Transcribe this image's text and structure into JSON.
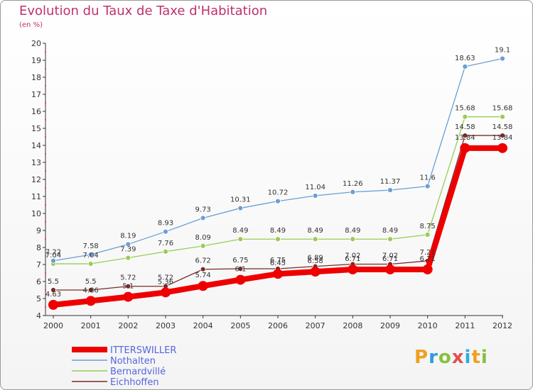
{
  "header": {
    "title": "Evolution du Taux de Taxe d'Habitation",
    "unit": "(en %)"
  },
  "logo": {
    "text": "Proxiti",
    "letters": [
      "P",
      "r",
      "o",
      "x",
      "i",
      "t",
      "i"
    ],
    "colors": [
      "#f0a020",
      "#3399dd",
      "#88c040",
      "#e05050",
      "#33aadd",
      "#f0a020",
      "#88c040"
    ]
  },
  "chart_data": {
    "type": "line",
    "x": [
      "2000",
      "2001",
      "2002",
      "2003",
      "2004",
      "2005",
      "2006",
      "2007",
      "2008",
      "2009",
      "2010",
      "2011",
      "2012"
    ],
    "ylim": [
      4,
      20
    ],
    "yticks": [
      "4",
      "5",
      "6",
      "7",
      "8",
      "9",
      "10",
      "11",
      "12",
      "13",
      "14",
      "15",
      "16",
      "17",
      "18",
      "19",
      "20"
    ],
    "grid": false,
    "legend_position": "bottom-left",
    "series": [
      {
        "name": "ITTERSWILLER",
        "color": "#ee0000",
        "values": [
          4.63,
          4.86,
          5.1,
          5.36,
          5.74,
          6.1,
          6.45,
          6.58,
          6.71,
          6.71,
          6.71,
          13.84,
          13.84
        ],
        "labels": [
          "4.63",
          "4.86",
          "5.1",
          "5.36",
          "5.74",
          "6.1",
          "6.45",
          "6.58",
          "6.71",
          "6.71",
          "6.71",
          "13.84",
          "13.84"
        ]
      },
      {
        "name": "Nothalten",
        "color": "#6a9fd4",
        "values": [
          7.22,
          7.58,
          8.19,
          8.93,
          9.73,
          10.31,
          10.72,
          11.04,
          11.26,
          11.37,
          11.6,
          18.63,
          19.1
        ],
        "labels": [
          "7.22",
          "7.58",
          "8.19",
          "8.93",
          "9.73",
          "10.31",
          "10.72",
          "11.04",
          "11.26",
          "11.37",
          "11.6",
          "18.63",
          "19.1"
        ]
      },
      {
        "name": "Bernardvillé",
        "color": "#99cc55",
        "values": [
          7.04,
          7.04,
          7.39,
          7.76,
          8.09,
          8.49,
          8.49,
          8.49,
          8.49,
          8.49,
          8.75,
          15.68,
          15.68
        ],
        "labels": [
          "7.04",
          "7.04",
          "7.39",
          "7.76",
          "8.09",
          "8.49",
          "8.49",
          "8.49",
          "8.49",
          "8.49",
          "8.75",
          "15.68",
          "15.68"
        ]
      },
      {
        "name": "Eichhoffen",
        "color": "#7a2a2a",
        "values": [
          5.5,
          5.5,
          5.72,
          5.72,
          6.72,
          6.75,
          6.75,
          6.89,
          7.02,
          7.02,
          7.21,
          14.58,
          14.58
        ],
        "labels": [
          "5.5",
          "5.5",
          "5.72",
          "5.72",
          "6.72",
          "6.75",
          "6.75",
          "6.89",
          "7.02",
          "7.02",
          "7.21",
          "14.58",
          "14.58"
        ]
      }
    ]
  }
}
